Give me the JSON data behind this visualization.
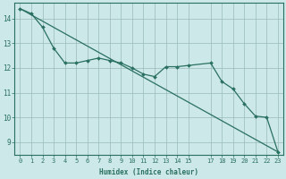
{
  "xlabel": "Humidex (Indice chaleur)",
  "bg_color": "#cce8e8",
  "line_color": "#2a7060",
  "grid_color": "#99bbbb",
  "xlim": [
    -0.5,
    23.5
  ],
  "ylim": [
    8.5,
    14.65
  ],
  "yticks": [
    9,
    10,
    11,
    12,
    13,
    14
  ],
  "xticks": [
    0,
    1,
    2,
    3,
    4,
    5,
    6,
    7,
    8,
    9,
    10,
    11,
    12,
    13,
    14,
    15,
    17,
    18,
    19,
    20,
    21,
    22,
    23
  ],
  "xtick_labels": [
    "0",
    "1",
    "2",
    "3",
    "4",
    "5",
    "6",
    "7",
    "8",
    "9",
    "10",
    "11",
    "12",
    "13",
    "14",
    "15",
    "17",
    "18",
    "19",
    "20",
    "21",
    "22",
    "23"
  ],
  "trend_x": [
    0,
    23
  ],
  "trend_y": [
    14.4,
    8.6
  ],
  "data_x": [
    0,
    1,
    2,
    3,
    4,
    5,
    6,
    7,
    8,
    9,
    10,
    11,
    12,
    13,
    14,
    15,
    17,
    18,
    19,
    20,
    21,
    22,
    23
  ],
  "data_y": [
    14.4,
    14.2,
    13.65,
    12.8,
    12.2,
    12.2,
    12.3,
    12.4,
    12.3,
    12.2,
    12.0,
    11.75,
    11.65,
    12.05,
    12.05,
    12.1,
    12.2,
    11.45,
    11.15,
    10.55,
    10.05,
    10.0,
    8.6
  ]
}
